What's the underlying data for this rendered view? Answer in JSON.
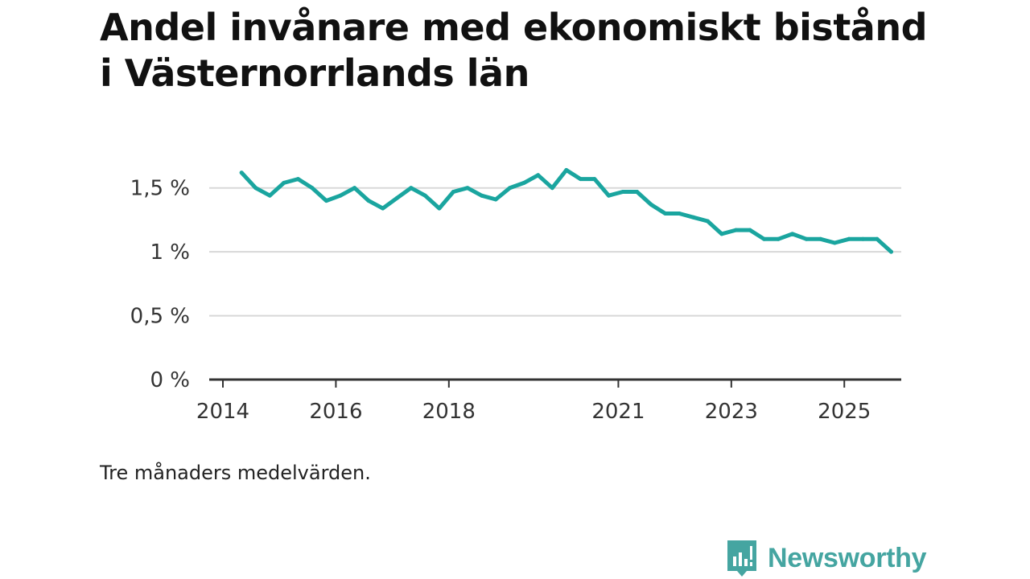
{
  "title": "Andel invånare med ekonomiskt bistånd i Västernorrlands län",
  "note": "Tre månaders medelvärden.",
  "brand": {
    "name": "Newsworthy",
    "color": "#45a5a1",
    "icon": "bar-chart-speech-bubble-icon"
  },
  "colors": {
    "line": "#1aa59f",
    "grid": "#d8d8d8",
    "axis": "#333333"
  },
  "chart_data": {
    "type": "line",
    "title": "Andel invånare med ekonomiskt bistånd i Västernorrlands län",
    "xlabel": "",
    "ylabel": "",
    "xlim": [
      2014.0,
      2026.25
    ],
    "ylim": [
      0,
      1.75
    ],
    "y_ticks": [
      {
        "value": 0,
        "label": "0 %"
      },
      {
        "value": 0.5,
        "label": "0,5 %"
      },
      {
        "value": 1.0,
        "label": "1 %"
      },
      {
        "value": 1.5,
        "label": "1,5 %"
      }
    ],
    "x_ticks": [
      {
        "value": 2014.0,
        "label": "2014"
      },
      {
        "value": 2016.0,
        "label": "2016"
      },
      {
        "value": 2018.0,
        "label": "2018"
      },
      {
        "value": 2021.0,
        "label": "2021"
      },
      {
        "value": 2023.0,
        "label": "2023"
      },
      {
        "value": 2025.0,
        "label": "2025"
      }
    ],
    "grid": true,
    "series": [
      {
        "name": "Andel invånare med ekonomiskt bistånd",
        "x": [
          2014.33,
          2014.58,
          2014.83,
          2015.08,
          2015.33,
          2015.58,
          2015.83,
          2016.08,
          2016.33,
          2016.58,
          2016.83,
          2017.08,
          2017.33,
          2017.58,
          2017.83,
          2018.08,
          2018.33,
          2018.58,
          2018.83,
          2019.08,
          2019.33,
          2019.58,
          2019.83,
          2020.08,
          2020.33,
          2020.58,
          2020.83,
          2021.08,
          2021.33,
          2021.58,
          2021.83,
          2022.08,
          2022.33,
          2022.58,
          2022.83,
          2023.08,
          2023.33,
          2023.58,
          2023.83,
          2024.08,
          2024.33,
          2024.58,
          2024.83,
          2025.08,
          2025.33,
          2025.58,
          2025.83
        ],
        "values": [
          1.62,
          1.5,
          1.44,
          1.54,
          1.57,
          1.5,
          1.4,
          1.44,
          1.5,
          1.4,
          1.34,
          1.42,
          1.5,
          1.44,
          1.34,
          1.47,
          1.5,
          1.44,
          1.41,
          1.5,
          1.54,
          1.6,
          1.5,
          1.64,
          1.57,
          1.57,
          1.44,
          1.47,
          1.47,
          1.37,
          1.3,
          1.3,
          1.27,
          1.24,
          1.14,
          1.17,
          1.17,
          1.1,
          1.1,
          1.14,
          1.1,
          1.1,
          1.07,
          1.1,
          1.1,
          1.1,
          1.0
        ]
      }
    ]
  }
}
